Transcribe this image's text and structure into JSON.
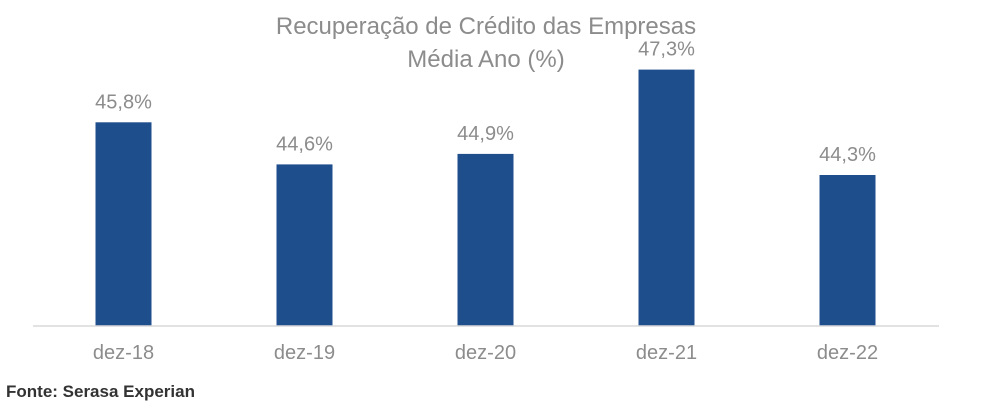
{
  "chart_data": {
    "type": "bar",
    "title": "Recuperação de Crédito das Empresas",
    "subtitle": "Média Ano (%)",
    "categories": [
      "dez-18",
      "dez-19",
      "dez-20",
      "dez-21",
      "dez-22"
    ],
    "values": [
      45.8,
      44.6,
      44.9,
      47.3,
      44.3
    ],
    "data_labels": [
      "45,8%",
      "44,6%",
      "44,9%",
      "47,3%",
      "44,3%"
    ],
    "xlabel": "",
    "ylabel": "",
    "ylim": [
      40,
      48.0
    ],
    "grid": false,
    "bar_color": "#1f4e8c",
    "source": "Fonte: Serasa Experian"
  }
}
